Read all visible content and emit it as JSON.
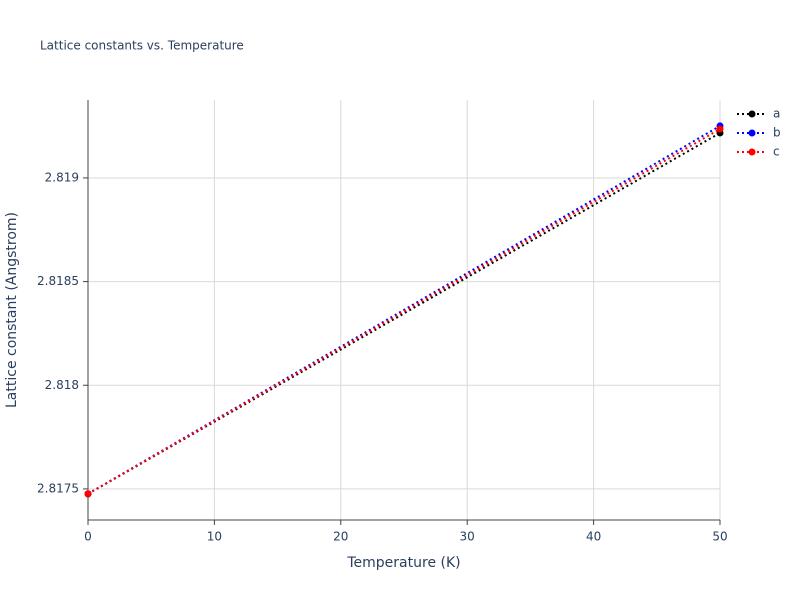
{
  "chart_data": {
    "type": "line",
    "title": "Lattice constants vs. Temperature",
    "x_label": "Temperature (K)",
    "y_label": "Lattice constant (Angstrom)",
    "x": [
      0,
      50
    ],
    "series": [
      {
        "name": "a",
        "color": "#000000",
        "values": [
          2.817476,
          2.819217
        ]
      },
      {
        "name": "b",
        "color": "#0000ff",
        "values": [
          2.817476,
          2.819251
        ]
      },
      {
        "name": "c",
        "color": "#ff0000",
        "values": [
          2.817476,
          2.819236
        ]
      }
    ],
    "xlim": [
      0,
      50
    ],
    "xticks": [
      0,
      10,
      20,
      30,
      40,
      50
    ],
    "ylim": [
      2.81735,
      2.819376
    ],
    "yticks": [
      2.8175,
      2.818,
      2.8185,
      2.819
    ],
    "grid": true
  }
}
